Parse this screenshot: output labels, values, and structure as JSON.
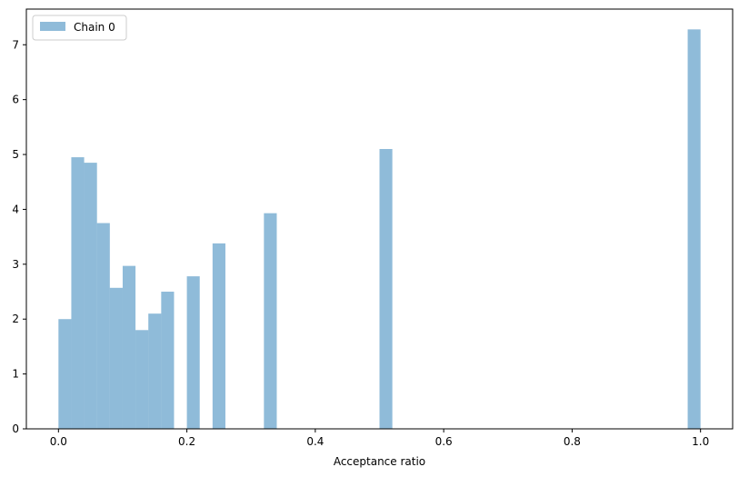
{
  "chart_data": {
    "type": "bar",
    "xlabel": "Acceptance ratio",
    "ylabel": "",
    "xlim": [
      -0.05,
      1.05
    ],
    "ylim": [
      0,
      7.65
    ],
    "xticks": [
      "0.0",
      "0.2",
      "0.4",
      "0.6",
      "0.8",
      "1.0"
    ],
    "xtick_values": [
      0.0,
      0.2,
      0.4,
      0.6,
      0.8,
      1.0
    ],
    "yticks": [
      "0",
      "1",
      "2",
      "3",
      "4",
      "5",
      "6",
      "7"
    ],
    "ytick_values": [
      0,
      1,
      2,
      3,
      4,
      5,
      6,
      7
    ],
    "grid": false,
    "legend_position": "upper-left",
    "series": [
      {
        "name": "Chain 0",
        "color": "#1f77b4",
        "alpha": 0.5,
        "bin_width": 0.02,
        "bins": [
          {
            "x0": 0.0,
            "x1": 0.02,
            "value": 2.0
          },
          {
            "x0": 0.02,
            "x1": 0.04,
            "value": 4.95
          },
          {
            "x0": 0.04,
            "x1": 0.06,
            "value": 4.85
          },
          {
            "x0": 0.06,
            "x1": 0.08,
            "value": 3.75
          },
          {
            "x0": 0.08,
            "x1": 0.1,
            "value": 2.57
          },
          {
            "x0": 0.1,
            "x1": 0.12,
            "value": 2.97
          },
          {
            "x0": 0.12,
            "x1": 0.14,
            "value": 1.8
          },
          {
            "x0": 0.14,
            "x1": 0.16,
            "value": 2.1
          },
          {
            "x0": 0.16,
            "x1": 0.18,
            "value": 2.5
          },
          {
            "x0": 0.2,
            "x1": 0.22,
            "value": 2.78
          },
          {
            "x0": 0.24,
            "x1": 0.26,
            "value": 3.38
          },
          {
            "x0": 0.32,
            "x1": 0.34,
            "value": 3.93
          },
          {
            "x0": 0.5,
            "x1": 0.52,
            "value": 5.1
          },
          {
            "x0": 0.98,
            "x1": 1.0,
            "value": 7.28
          }
        ]
      }
    ]
  }
}
